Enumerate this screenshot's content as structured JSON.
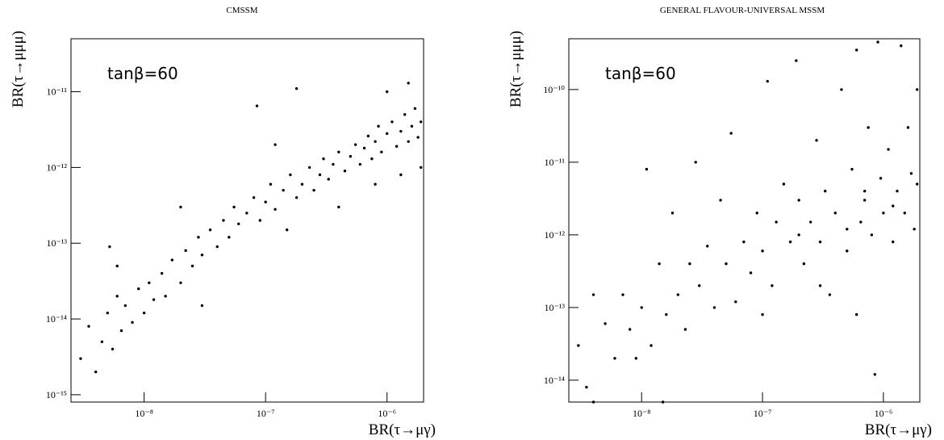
{
  "chart_data": [
    {
      "type": "scatter",
      "title": "CMSSM",
      "annotation": "tanβ=60",
      "x_label": "BR(τ→μγ)",
      "y_label": "BR(τ→μμμ)",
      "x_scale": "log",
      "y_scale": "log",
      "color": "#000000",
      "xlim": [
        2.5e-09,
        2e-06
      ],
      "ylim": [
        8e-16,
        5e-11
      ],
      "xticks": [
        {
          "value": 1e-08,
          "label": "10⁻⁸"
        },
        {
          "value": 1e-07,
          "label": "10⁻⁷"
        },
        {
          "value": 1e-06,
          "label": "10⁻⁶"
        }
      ],
      "yticks": [
        {
          "value": 1e-15,
          "label": "10⁻¹⁵"
        },
        {
          "value": 1e-14,
          "label": "10⁻¹⁴"
        },
        {
          "value": 1e-13,
          "label": "10⁻¹³"
        },
        {
          "value": 1e-12,
          "label": "10⁻¹²"
        },
        {
          "value": 1e-11,
          "label": "10⁻¹¹"
        }
      ],
      "x": [
        3e-09,
        3.5e-09,
        4e-09,
        4.5e-09,
        5e-09,
        5.5e-09,
        6e-09,
        6.5e-09,
        7e-09,
        8e-09,
        9e-09,
        1e-08,
        1.1e-08,
        1.2e-08,
        1.4e-08,
        1.5e-08,
        1.7e-08,
        2e-08,
        2.2e-08,
        2.5e-08,
        2.8e-08,
        3e-08,
        3.5e-08,
        4e-08,
        4.5e-08,
        5e-08,
        5.5e-08,
        6e-08,
        7e-08,
        8e-08,
        9e-08,
        1e-07,
        1.1e-07,
        1.2e-07,
        1.4e-07,
        1.6e-07,
        1.8e-07,
        1.8e-07,
        2e-07,
        2.3e-07,
        2.5e-07,
        2.8e-07,
        3e-07,
        3.3e-07,
        3.6e-07,
        4e-07,
        4.5e-07,
        5e-07,
        5.5e-07,
        6e-07,
        6.5e-07,
        7e-07,
        7.5e-07,
        8e-07,
        8.5e-07,
        9e-07,
        1e-06,
        1.1e-06,
        1.2e-06,
        1.3e-06,
        1.4e-06,
        1.5e-06,
        1.6e-06,
        1.7e-06,
        1.8e-06,
        1.9e-06,
        1.5e-06,
        5.2e-09,
        8.5e-08,
        1.2e-07,
        2e-08,
        6e-09,
        1.3e-06,
        8e-07,
        4e-07,
        1.9e-06,
        1e-06,
        3e-08,
        1.5e-07
      ],
      "values": [
        3e-15,
        8e-15,
        2e-15,
        5e-15,
        1.2e-14,
        4e-15,
        2e-14,
        7e-15,
        1.5e-14,
        9e-15,
        2.5e-14,
        1.2e-14,
        3e-14,
        1.8e-14,
        4e-14,
        2e-14,
        6e-14,
        3e-14,
        8e-14,
        5e-14,
        1.2e-13,
        7e-14,
        1.5e-13,
        9e-14,
        2e-13,
        1.2e-13,
        3e-13,
        1.8e-13,
        2.5e-13,
        4e-13,
        2e-13,
        3.5e-13,
        6e-13,
        2.8e-13,
        5e-13,
        8e-13,
        4e-13,
        1.1e-11,
        6e-13,
        1e-12,
        5e-13,
        8e-13,
        1.3e-12,
        7e-13,
        1.1e-12,
        1.6e-12,
        9e-13,
        1.4e-12,
        2e-12,
        1.1e-12,
        1.8e-12,
        2.6e-12,
        1.3e-12,
        2.2e-12,
        3.5e-12,
        1.6e-12,
        2.8e-12,
        4e-12,
        1.9e-12,
        3e-12,
        5e-12,
        2.2e-12,
        3.5e-12,
        6e-12,
        2.5e-12,
        4e-12,
        1.3e-11,
        9e-14,
        6.5e-12,
        2e-12,
        3e-13,
        5e-14,
        8e-13,
        6e-13,
        3e-13,
        1e-12,
        1e-11,
        1.5e-14,
        1.5e-13
      ]
    },
    {
      "type": "scatter",
      "title": "GENERAL FLAVOUR-UNIVERSAL MSSM",
      "annotation": "tanβ=60",
      "x_label": "BR(τ→μγ)",
      "y_label": "BR(τ→μμμ)",
      "x_scale": "log",
      "y_scale": "log",
      "color": "#000000",
      "xlim": [
        2.5e-09,
        2e-06
      ],
      "ylim": [
        5e-15,
        5e-10
      ],
      "xticks": [
        {
          "value": 1e-08,
          "label": "10⁻⁸"
        },
        {
          "value": 1e-07,
          "label": "10⁻⁷"
        },
        {
          "value": 1e-06,
          "label": "10⁻⁶"
        }
      ],
      "yticks": [
        {
          "value": 1e-14,
          "label": "10⁻¹⁴"
        },
        {
          "value": 1e-13,
          "label": "10⁻¹³"
        },
        {
          "value": 1e-12,
          "label": "10⁻¹²"
        },
        {
          "value": 1e-11,
          "label": "10⁻¹¹"
        },
        {
          "value": 1e-10,
          "label": "10⁻¹⁰"
        }
      ],
      "x": [
        3e-09,
        3.5e-09,
        4e-09,
        5e-09,
        6e-09,
        7e-09,
        8e-09,
        9e-09,
        1e-08,
        1.1e-08,
        1.2e-08,
        1.4e-08,
        1.6e-08,
        1.8e-08,
        2e-08,
        2.3e-08,
        2.5e-08,
        2.8e-08,
        3e-08,
        3.5e-08,
        4e-08,
        4.5e-08,
        5e-08,
        5.5e-08,
        6e-08,
        7e-08,
        8e-08,
        9e-08,
        1e-07,
        1.1e-07,
        1.2e-07,
        1.3e-07,
        1.5e-07,
        1.7e-07,
        1.9e-07,
        2e-07,
        2.2e-07,
        2.5e-07,
        2.8e-07,
        3e-07,
        3.3e-07,
        3.6e-07,
        4e-07,
        4.5e-07,
        5e-07,
        5.5e-07,
        6e-07,
        6.5e-07,
        7e-07,
        7.5e-07,
        8e-07,
        8.5e-07,
        9e-07,
        9.5e-07,
        1e-06,
        1.1e-06,
        1.2e-06,
        1.3e-06,
        1.4e-06,
        1.5e-06,
        1.6e-06,
        1.7e-06,
        1.8e-06,
        1.9e-06,
        1.9e-06,
        6e-07,
        3e-07,
        1e-07,
        4e-09,
        1.5e-08,
        7e-07,
        1.2e-06,
        5e-07,
        2e-07
      ],
      "values": [
        3e-14,
        8e-15,
        1.5e-13,
        6e-14,
        2e-14,
        1.5e-13,
        5e-14,
        2e-14,
        1e-13,
        8e-12,
        3e-14,
        4e-13,
        8e-14,
        2e-12,
        1.5e-13,
        5e-14,
        4e-13,
        1e-11,
        2e-13,
        7e-13,
        1e-13,
        3e-12,
        4e-13,
        2.5e-11,
        1.2e-13,
        8e-13,
        3e-13,
        2e-12,
        6e-13,
        1.3e-10,
        2e-13,
        1.5e-12,
        5e-12,
        8e-13,
        2.5e-10,
        3e-12,
        4e-13,
        1.5e-12,
        2e-11,
        8e-13,
        4e-12,
        1.5e-13,
        2e-12,
        1e-10,
        6e-13,
        8e-12,
        3.5e-10,
        1.5e-12,
        4e-12,
        3e-11,
        1e-12,
        1.2e-14,
        4.5e-10,
        6e-12,
        2e-12,
        1.5e-11,
        8e-13,
        4e-12,
        4e-10,
        2e-12,
        3e-11,
        7e-12,
        1.2e-12,
        5e-12,
        1e-10,
        8e-14,
        2e-13,
        8e-14,
        5e-15,
        5e-15,
        3e-12,
        2.5e-12,
        1.2e-12,
        1e-12
      ]
    }
  ]
}
